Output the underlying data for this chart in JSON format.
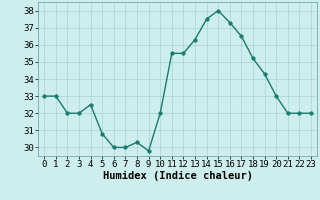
{
  "x": [
    0,
    1,
    2,
    3,
    4,
    5,
    6,
    7,
    8,
    9,
    10,
    11,
    12,
    13,
    14,
    15,
    16,
    17,
    18,
    19,
    20,
    21,
    22,
    23
  ],
  "y": [
    33,
    33,
    32,
    32,
    32.5,
    30.8,
    30.0,
    30.0,
    30.3,
    29.8,
    32.0,
    35.5,
    35.5,
    36.3,
    37.5,
    38.0,
    37.3,
    36.5,
    35.2,
    34.3,
    33.0,
    32.0,
    32.0,
    32.0
  ],
  "line_color": "#1a7a6e",
  "marker_color": "#1a7a6e",
  "bg_color": "#ceeeed",
  "grid_color": "#aad4d4",
  "xlabel": "Humidex (Indice chaleur)",
  "xlim": [
    -0.5,
    23.5
  ],
  "ylim": [
    29.5,
    38.5
  ],
  "yticks": [
    30,
    31,
    32,
    33,
    34,
    35,
    36,
    37,
    38
  ],
  "xticks": [
    0,
    1,
    2,
    3,
    4,
    5,
    6,
    7,
    8,
    9,
    10,
    11,
    12,
    13,
    14,
    15,
    16,
    17,
    18,
    19,
    20,
    21,
    22,
    23
  ],
  "xlabel_fontsize": 7.5,
  "tick_fontsize": 6.5,
  "line_width": 1.0,
  "marker_size": 2.5
}
